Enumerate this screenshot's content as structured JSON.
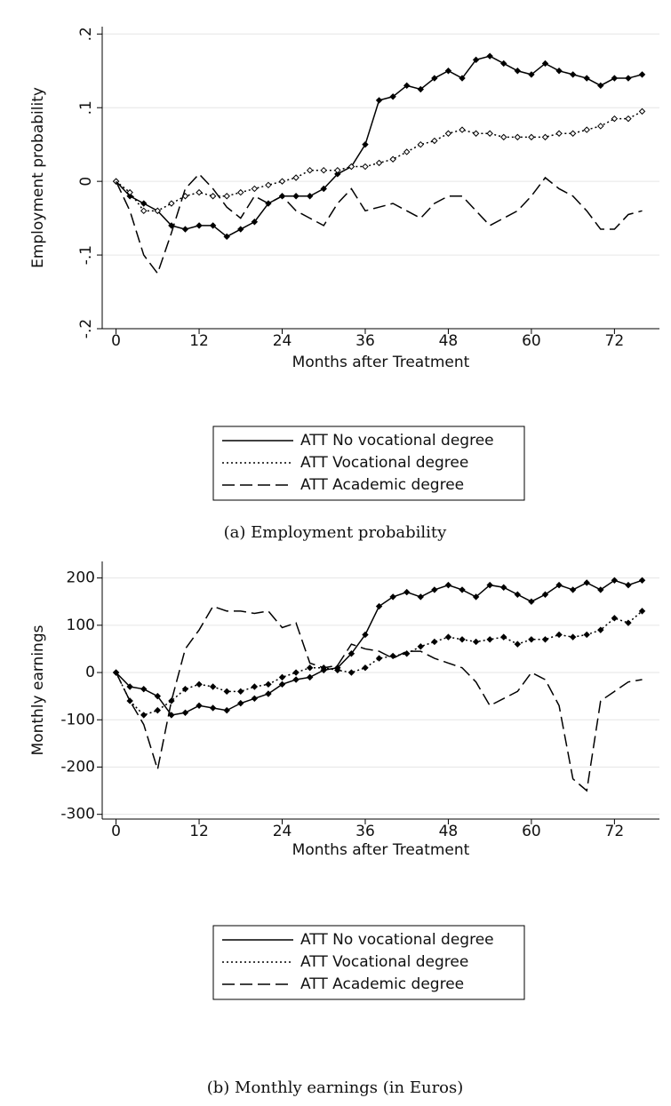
{
  "chart_data": [
    {
      "type": "line",
      "caption": "(a) Employment probability",
      "xlabel": "Months after Treatment",
      "ylabel": "Employment probability",
      "x": [
        0,
        2,
        4,
        6,
        8,
        10,
        12,
        14,
        16,
        18,
        20,
        22,
        24,
        26,
        28,
        30,
        32,
        34,
        36,
        38,
        40,
        42,
        44,
        46,
        48,
        50,
        52,
        54,
        56,
        58,
        60,
        62,
        64,
        66,
        68,
        70,
        72,
        74,
        76
      ],
      "xlim": [
        -2,
        78.5
      ],
      "xticks": [
        0,
        12,
        24,
        36,
        48,
        60,
        72
      ],
      "ylim": [
        -0.2,
        0.21
      ],
      "yticks": [
        {
          "value": 0.2,
          "label": ".2"
        },
        {
          "value": 0.1,
          "label": ".1"
        },
        0,
        {
          "value": -0.1,
          "label": "-.1"
        },
        {
          "value": -0.2,
          "label": "-.2"
        }
      ],
      "grid": true,
      "legend": "bottom",
      "series": [
        {
          "name": "ATT No vocational degree",
          "color": "#000000",
          "dash": "solid",
          "marker": "filled",
          "values": [
            0,
            -0.02,
            -0.03,
            -0.04,
            -0.06,
            -0.065,
            -0.06,
            -0.06,
            -0.075,
            -0.065,
            -0.055,
            -0.03,
            -0.02,
            -0.02,
            -0.02,
            -0.01,
            0.01,
            0.02,
            0.05,
            0.11,
            0.115,
            0.13,
            0.125,
            0.14,
            0.15,
            0.14,
            0.165,
            0.17,
            0.16,
            0.15,
            0.145,
            0.16,
            0.15,
            0.145,
            0.14,
            0.13,
            0.14,
            0.14,
            0.145
          ]
        },
        {
          "name": "ATT Vocational degree",
          "color": "#000000",
          "dash": "dotted",
          "marker": "hollow",
          "values": [
            0,
            -0.015,
            -0.04,
            -0.04,
            -0.03,
            -0.02,
            -0.015,
            -0.02,
            -0.02,
            -0.015,
            -0.01,
            -0.005,
            0,
            0.005,
            0.015,
            0.015,
            0.015,
            0.02,
            0.02,
            0.025,
            0.03,
            0.04,
            0.05,
            0.055,
            0.065,
            0.07,
            0.065,
            0.065,
            0.06,
            0.06,
            0.06,
            0.06,
            0.065,
            0.065,
            0.07,
            0.075,
            0.085,
            0.085,
            0.095
          ]
        },
        {
          "name": "ATT Academic degree",
          "color": "#000000",
          "dash": "dashed",
          "marker": "none",
          "values": [
            0,
            -0.04,
            -0.1,
            -0.125,
            -0.07,
            -0.01,
            0.01,
            -0.01,
            -0.035,
            -0.05,
            -0.02,
            -0.03,
            -0.02,
            -0.04,
            -0.05,
            -0.06,
            -0.03,
            -0.01,
            -0.04,
            -0.035,
            -0.03,
            -0.04,
            -0.05,
            -0.03,
            -0.02,
            -0.02,
            -0.04,
            -0.06,
            -0.05,
            -0.04,
            -0.02,
            0.005,
            -0.01,
            -0.02,
            -0.04,
            -0.065,
            -0.065,
            -0.045,
            -0.04
          ]
        }
      ]
    },
    {
      "type": "line",
      "caption": "(b) Monthly earnings (in Euros)",
      "xlabel": "Months after Treatment",
      "ylabel": "Monthly earnings",
      "x": [
        0,
        2,
        4,
        6,
        8,
        10,
        12,
        14,
        16,
        18,
        20,
        22,
        24,
        26,
        28,
        30,
        32,
        34,
        36,
        38,
        40,
        42,
        44,
        46,
        48,
        50,
        52,
        54,
        56,
        58,
        60,
        62,
        64,
        66,
        68,
        70,
        72,
        74,
        76
      ],
      "xlim": [
        -2,
        78.5
      ],
      "xticks": [
        0,
        12,
        24,
        36,
        48,
        60,
        72
      ],
      "ylim": [
        -310,
        235
      ],
      "yticks": [
        200,
        100,
        0,
        -100,
        -200,
        -300
      ],
      "grid": true,
      "legend": "bottom",
      "series": [
        {
          "name": "ATT No vocational degree",
          "color": "#000000",
          "dash": "solid",
          "marker": "filled",
          "values": [
            0,
            -30,
            -35,
            -50,
            -90,
            -85,
            -70,
            -75,
            -80,
            -65,
            -55,
            -45,
            -25,
            -15,
            -10,
            5,
            10,
            40,
            80,
            140,
            160,
            170,
            160,
            175,
            185,
            175,
            160,
            185,
            180,
            165,
            150,
            165,
            185,
            175,
            190,
            175,
            195,
            185,
            195
          ]
        },
        {
          "name": "ATT Vocational degree",
          "color": "#000000",
          "dash": "dotted",
          "marker": "filled",
          "values": [
            0,
            -60,
            -90,
            -80,
            -60,
            -35,
            -25,
            -30,
            -40,
            -40,
            -30,
            -25,
            -10,
            0,
            10,
            10,
            5,
            0,
            10,
            30,
            35,
            40,
            55,
            65,
            75,
            70,
            65,
            70,
            75,
            60,
            70,
            70,
            80,
            75,
            80,
            90,
            115,
            105,
            130
          ]
        },
        {
          "name": "ATT Academic degree",
          "color": "#000000",
          "dash": "dashed",
          "marker": "none",
          "values": [
            0,
            -60,
            -110,
            -205,
            -60,
            50,
            90,
            140,
            130,
            130,
            125,
            130,
            95,
            105,
            20,
            10,
            15,
            60,
            50,
            45,
            30,
            45,
            45,
            30,
            20,
            10,
            -20,
            -70,
            -55,
            -40,
            0,
            -15,
            -70,
            -225,
            -250,
            -60,
            -40,
            -20,
            -15
          ]
        }
      ]
    }
  ]
}
